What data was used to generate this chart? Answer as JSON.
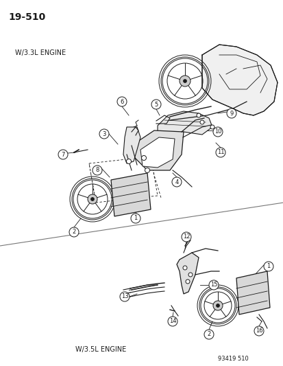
{
  "title": "19-510",
  "background_color": "#ffffff",
  "label_33": "W/3.3L ENGINE",
  "label_35": "W/3.5L ENGINE",
  "watermark": "93419 510",
  "fig_width": 4.14,
  "fig_height": 5.33,
  "dpi": 100,
  "dark": "#1a1a1a",
  "gray": "#888888",
  "light_gray": "#dddddd"
}
